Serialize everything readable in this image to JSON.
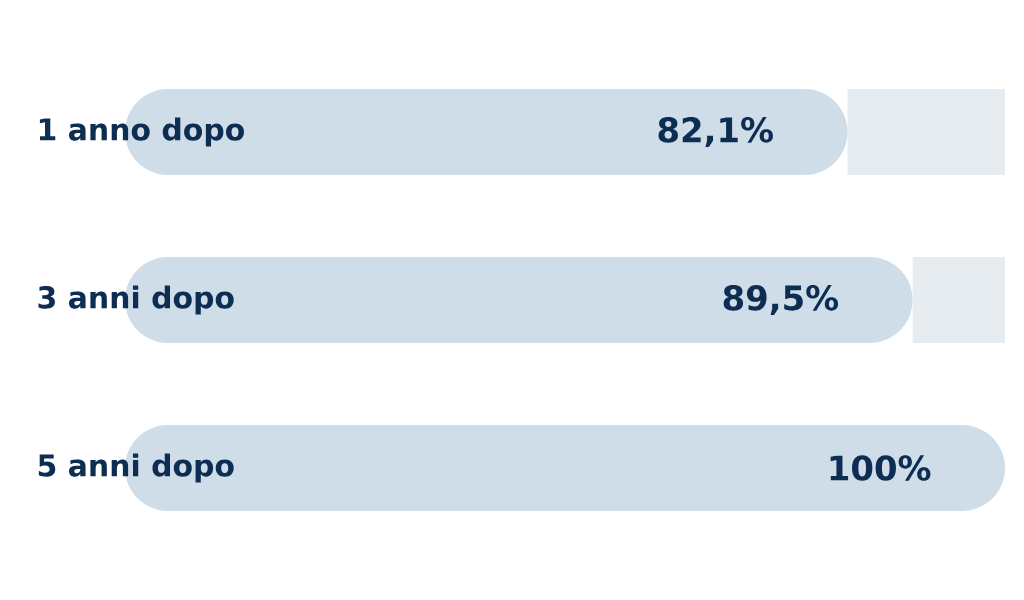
{
  "chart_data": {
    "type": "bar",
    "orientation": "horizontal",
    "stacked": true,
    "categories": [
      "1 anno dopo",
      "3 anni dopo",
      "5 anni dopo"
    ],
    "xlim": [
      0,
      100
    ],
    "series": [
      {
        "color": "#cfdde9",
        "values": [
          82.1,
          89.5,
          100
        ],
        "value_labels": [
          "82,1%",
          "89,5%",
          "100%"
        ]
      },
      {
        "color": "#e7ecf1",
        "values": [
          17.9,
          10.5,
          null
        ]
      }
    ]
  }
}
